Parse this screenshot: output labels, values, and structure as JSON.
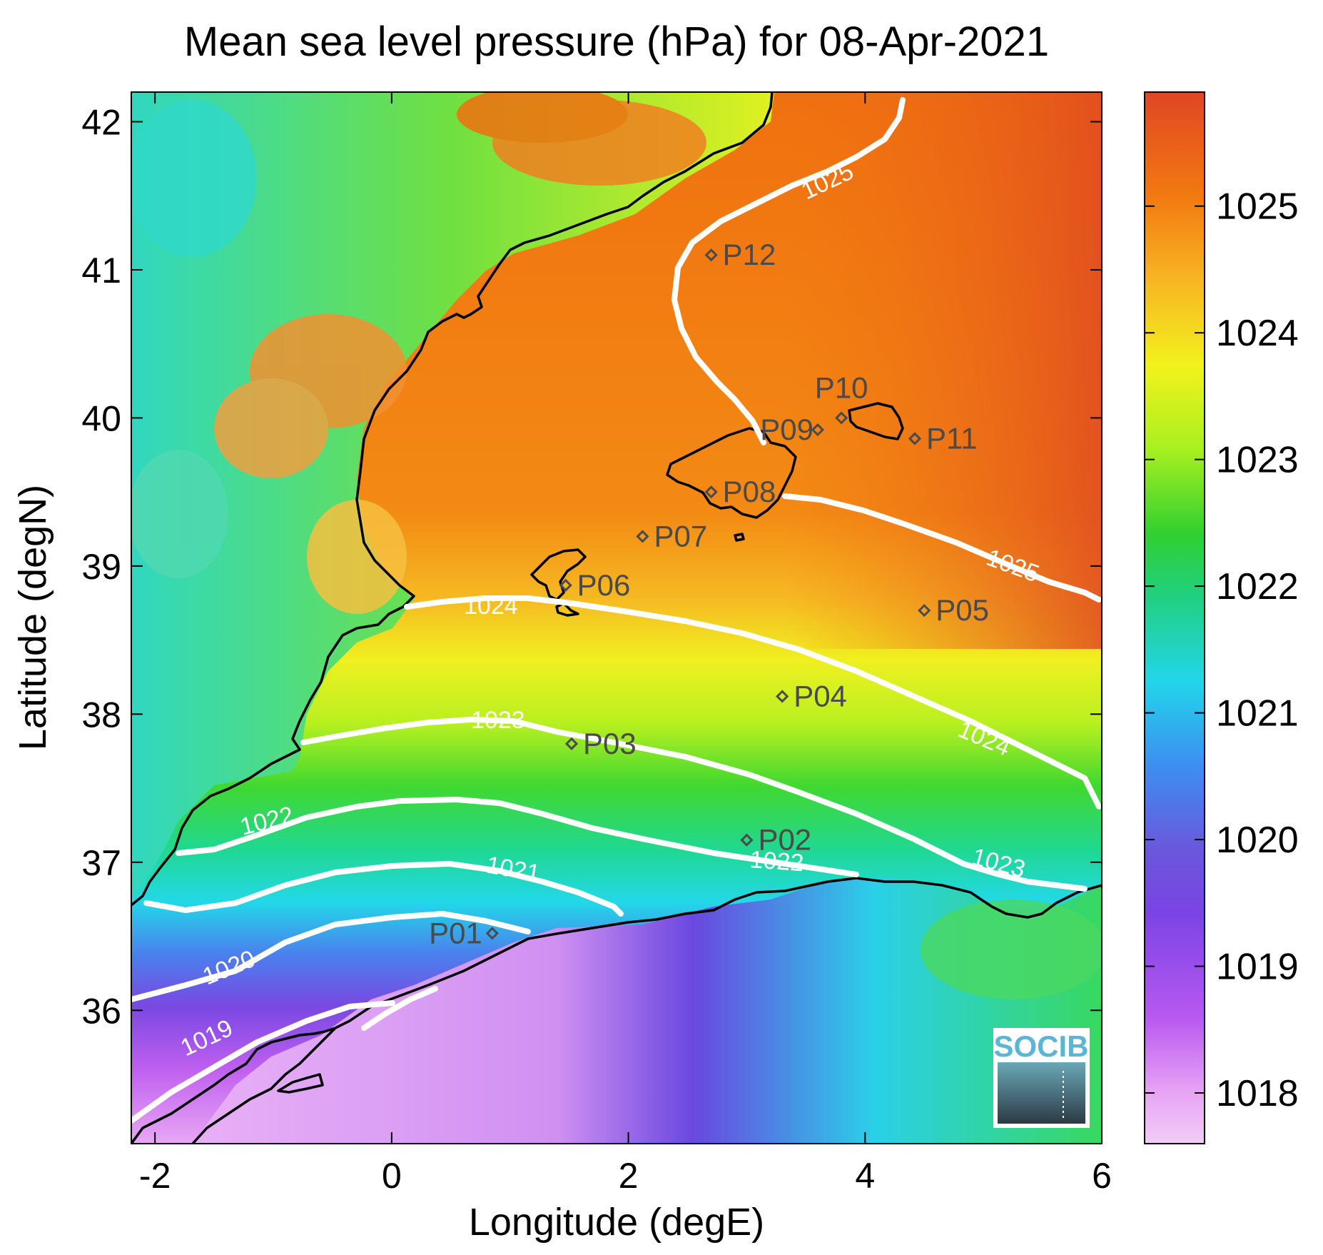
{
  "title": "Mean sea level pressure (hPa) for 08-Apr-2021",
  "axes": {
    "xlabel": "Longitude (degE)",
    "ylabel": "Latitude (degN)",
    "xlim": [
      -2.2,
      6.0
    ],
    "ylim": [
      35.1,
      42.2
    ],
    "xticks": [
      -2,
      0,
      2,
      4,
      6
    ],
    "yticks": [
      36,
      37,
      38,
      39,
      40,
      41,
      42
    ],
    "xtick_labels": [
      "-2",
      "0",
      "2",
      "4",
      "6"
    ],
    "ytick_labels": [
      "36",
      "37",
      "38",
      "39",
      "40",
      "41",
      "42"
    ]
  },
  "colorbar": {
    "range": [
      1017.6,
      1025.9
    ],
    "ticks": [
      1018,
      1019,
      1020,
      1021,
      1022,
      1023,
      1024,
      1025
    ],
    "tick_labels": [
      "1018",
      "1019",
      "1020",
      "1021",
      "1022",
      "1023",
      "1024",
      "1025"
    ],
    "colormap": [
      "#f0c8f5",
      "#c060f0",
      "#7040e0",
      "#3a8ef0",
      "#20e0e8",
      "#20d050",
      "#a0f020",
      "#f0f020",
      "#f8b020",
      "#f07010",
      "#e04020"
    ]
  },
  "stations": [
    {
      "name": "P01",
      "lon": 0.85,
      "lat": 36.52
    },
    {
      "name": "P02",
      "lon": 3.0,
      "lat": 37.15
    },
    {
      "name": "P03",
      "lon": 1.52,
      "lat": 37.8
    },
    {
      "name": "P04",
      "lon": 3.3,
      "lat": 38.12
    },
    {
      "name": "P05",
      "lon": 4.5,
      "lat": 38.7
    },
    {
      "name": "P06",
      "lon": 1.47,
      "lat": 38.87
    },
    {
      "name": "P07",
      "lon": 2.12,
      "lat": 39.2
    },
    {
      "name": "P08",
      "lon": 2.7,
      "lat": 39.5
    },
    {
      "name": "P09",
      "lon": 3.6,
      "lat": 39.92
    },
    {
      "name": "P10",
      "lon": 3.8,
      "lat": 40.0
    },
    {
      "name": "P11",
      "lon": 4.42,
      "lat": 39.86
    },
    {
      "name": "P12",
      "lon": 2.7,
      "lat": 41.1
    }
  ],
  "contour_labels": [
    "1019",
    "1020",
    "1021",
    "1022",
    "1022",
    "1023",
    "1023",
    "1024",
    "1024",
    "1025",
    "1025"
  ],
  "logo": {
    "text": "SOCIB"
  }
}
